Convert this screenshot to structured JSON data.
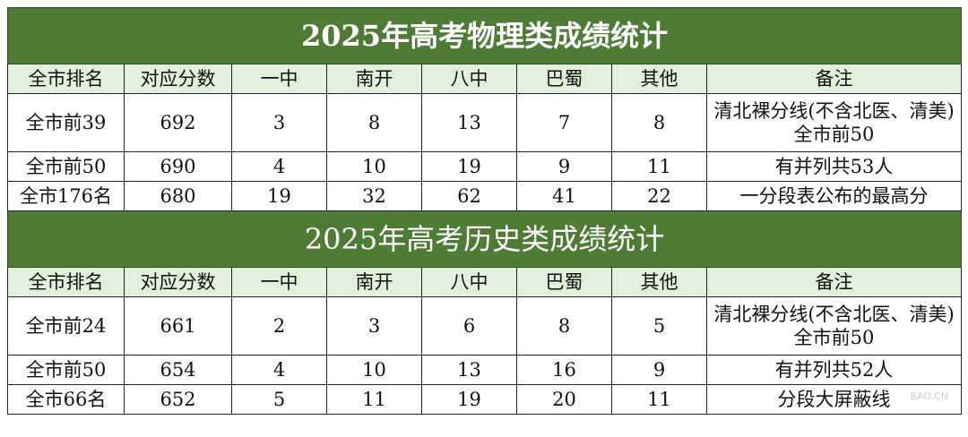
{
  "tables": [
    {
      "title": "2025年高考物理类成绩统计",
      "headers": [
        "全市排名",
        "对应分数",
        "一中",
        "南开",
        "八中",
        "巴蜀",
        "其他",
        "备注"
      ],
      "rows": [
        [
          "全市前39",
          "692",
          "3",
          "8",
          "13",
          "7",
          "8",
          "清北裸分线(不含北医、清美)全市前50"
        ],
        [
          "全市前50",
          "690",
          "4",
          "10",
          "19",
          "9",
          "11",
          "有并列共53人"
        ],
        [
          "全市176名",
          "680",
          "19",
          "32",
          "62",
          "41",
          "22",
          "一分段表公布的最高分"
        ]
      ]
    },
    {
      "title": "2025年高考历史类成绩统计",
      "headers": [
        "全市排名",
        "对应分数",
        "一中",
        "南开",
        "八中",
        "巴蜀",
        "其他",
        "备注"
      ],
      "rows": [
        [
          "全市前24",
          "661",
          "2",
          "3",
          "6",
          "8",
          "5",
          "清北裸分线(不含北医、清美)全市前50"
        ],
        [
          "全市前50",
          "654",
          "4",
          "10",
          "13",
          "16",
          "9",
          "有并列共52人"
        ],
        [
          "全市66名",
          "652",
          "5",
          "11",
          "19",
          "20",
          "11",
          "分段大屏蔽线"
        ]
      ]
    }
  ],
  "watermark": "BAO.CN"
}
